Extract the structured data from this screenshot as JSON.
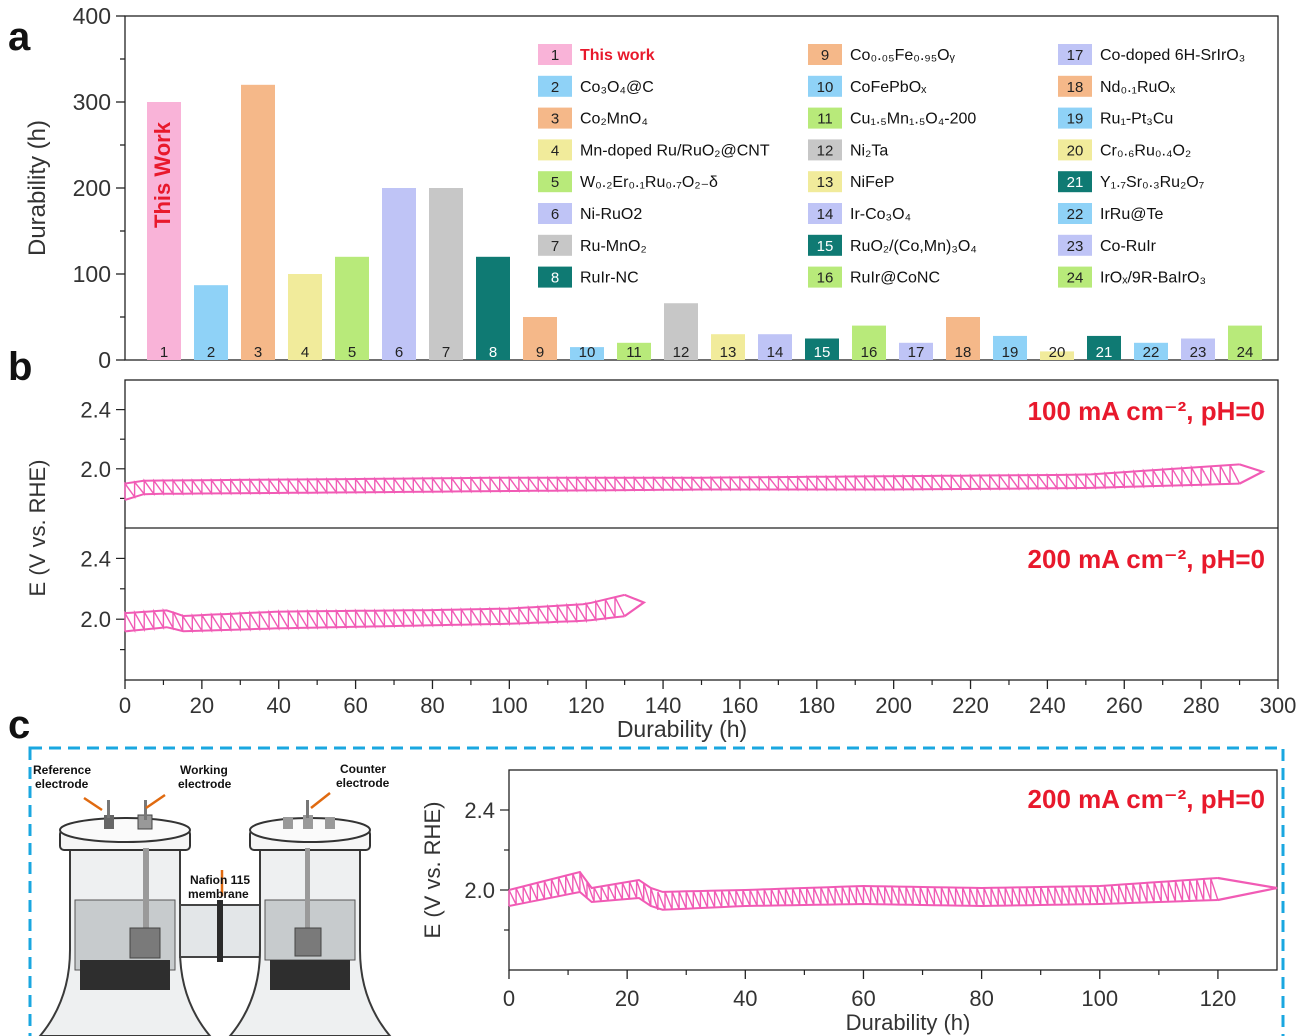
{
  "panel_labels": [
    "a",
    "b",
    "c"
  ],
  "colors": {
    "pink_trace": "#f15bb5",
    "red_text": "#e8192c",
    "frame_dash": "#1aa7e0",
    "axis": "#222222"
  },
  "chart_data": [
    {
      "id": "a",
      "type": "bar",
      "ylabel": "Durability (h)",
      "ylim": [
        0,
        400
      ],
      "yticks": [
        0,
        100,
        200,
        300,
        400
      ],
      "categories": [
        "1",
        "2",
        "3",
        "4",
        "5",
        "6",
        "7",
        "8",
        "9",
        "10",
        "11",
        "12",
        "13",
        "14",
        "15",
        "16",
        "17",
        "18",
        "19",
        "20",
        "21",
        "22",
        "23",
        "24"
      ],
      "values": [
        300,
        87,
        320,
        100,
        120,
        200,
        200,
        120,
        50,
        15,
        20,
        66,
        30,
        30,
        25,
        40,
        20,
        50,
        28,
        10,
        28,
        20,
        25,
        40
      ],
      "colors": [
        "#f9b3d8",
        "#8fd2f7",
        "#f5b889",
        "#f1eb9b",
        "#b8ea7a",
        "#bfc4f6",
        "#c7c7c7",
        "#0f7a73",
        "#f5b889",
        "#8fd2f7",
        "#b8ea7a",
        "#c7c7c7",
        "#f1eb9b",
        "#bfc4f6",
        "#0f7a73",
        "#b8ea7a",
        "#bfc4f6",
        "#f5b889",
        "#8fd2f7",
        "#f1eb9b",
        "#0f7a73",
        "#8fd2f7",
        "#bfc4f6",
        "#b8ea7a"
      ],
      "annotation": "This Work",
      "legend": [
        {
          "num": "1",
          "label": "This work",
          "highlight": true
        },
        {
          "num": "2",
          "label": "Co₃O₄@C"
        },
        {
          "num": "3",
          "label": "Co₂MnO₄"
        },
        {
          "num": "4",
          "label": "Mn-doped Ru/RuO₂@CNT"
        },
        {
          "num": "5",
          "label": "W₀.₂Er₀.₁Ru₀.₇O₂₋δ"
        },
        {
          "num": "6",
          "label": "Ni-RuO2"
        },
        {
          "num": "7",
          "label": "Ru-MnO₂"
        },
        {
          "num": "8",
          "label": "RuIr-NC"
        },
        {
          "num": "9",
          "label": "Co₀.₀₅Fe₀.₉₅Oᵧ"
        },
        {
          "num": "10",
          "label": "CoFePbOₓ"
        },
        {
          "num": "11",
          "label": "Cu₁.₅Mn₁.₅O₄-200"
        },
        {
          "num": "12",
          "label": "Ni₂Ta"
        },
        {
          "num": "13",
          "label": "NiFeP"
        },
        {
          "num": "14",
          "label": "Ir-Co₃O₄"
        },
        {
          "num": "15",
          "label": "RuO₂/(Co,Mn)₃O₄"
        },
        {
          "num": "16",
          "label": "RuIr@CoNC"
        },
        {
          "num": "17",
          "label": "Co-doped 6H-SrIrO₃"
        },
        {
          "num": "18",
          "label": "Nd₀.₁RuOₓ"
        },
        {
          "num": "19",
          "label": "Ru₁-Pt₃Cu"
        },
        {
          "num": "20",
          "label": "Cr₀.₆Ru₀.₄O₂"
        },
        {
          "num": "21",
          "label": "Y₁.₇Sr₀.₃Ru₂O₇"
        },
        {
          "num": "22",
          "label": "IrRu@Te"
        },
        {
          "num": "23",
          "label": "Co-RuIr"
        },
        {
          "num": "24",
          "label": "IrOₓ/9R-BaIrO₃"
        }
      ]
    },
    {
      "id": "b",
      "type": "line",
      "xlabel": "Durability (h)",
      "ylabel": "E (V vs. RHE)",
      "xlim": [
        0,
        300
      ],
      "xticks": [
        0,
        20,
        40,
        60,
        80,
        100,
        120,
        140,
        160,
        180,
        200,
        220,
        240,
        260,
        280,
        300
      ],
      "subplots": [
        {
          "annotation": "100 mA cm⁻², pH=0",
          "ylim": [
            1.6,
            2.6
          ],
          "yticks": [
            2.0,
            2.4
          ],
          "cycle_spacing_h": 2.5,
          "trace": {
            "x": [
              0,
              5,
              55,
              100,
              150,
              200,
              250,
              290,
              296
            ],
            "y_low": [
              1.79,
              1.83,
              1.84,
              1.85,
              1.86,
              1.86,
              1.87,
              1.9,
              1.98
            ],
            "y_high": [
              1.9,
              1.92,
              1.93,
              1.94,
              1.94,
              1.95,
              1.96,
              2.03,
              1.98
            ]
          }
        },
        {
          "annotation": "200 mA cm⁻², pH=0",
          "ylim": [
            1.6,
            2.6
          ],
          "yticks": [
            2.0,
            2.4
          ],
          "cycle_spacing_h": 2.5,
          "trace": {
            "x": [
              0,
              12,
              14,
              40,
              80,
              100,
              120,
              130,
              135
            ],
            "y_low": [
              1.92,
              1.95,
              1.92,
              1.94,
              1.96,
              1.97,
              1.99,
              2.02,
              2.11
            ],
            "y_high": [
              2.04,
              2.06,
              2.02,
              2.05,
              2.06,
              2.07,
              2.1,
              2.16,
              2.11
            ]
          }
        }
      ]
    },
    {
      "id": "c",
      "type": "line",
      "xlabel": "Durability (h)",
      "ylabel": "E (V vs. RHE)",
      "xlim": [
        0,
        130
      ],
      "xticks": [
        0,
        20,
        40,
        60,
        80,
        100,
        120
      ],
      "ylim": [
        1.6,
        2.6
      ],
      "yticks": [
        2.0,
        2.4
      ],
      "annotation": "200 mA cm⁻², pH=0",
      "cycle_spacing_h": 1.2,
      "trace": {
        "x": [
          0,
          12,
          14,
          22,
          25,
          40,
          60,
          80,
          100,
          120,
          130
        ],
        "y_low": [
          1.92,
          1.99,
          1.94,
          1.96,
          1.9,
          1.92,
          1.93,
          1.92,
          1.93,
          1.95,
          2.01
        ],
        "y_high": [
          2.0,
          2.09,
          2.01,
          2.05,
          1.99,
          2.0,
          2.02,
          2.01,
          2.02,
          2.06,
          2.13
        ]
      }
    }
  ],
  "cell_diagram": {
    "labels": {
      "reference": "Reference\nelectrode",
      "working": "Working\nelectrode",
      "counter": "Counter\nelectrode",
      "membrane": "Nafion 115\nmembrane"
    }
  }
}
